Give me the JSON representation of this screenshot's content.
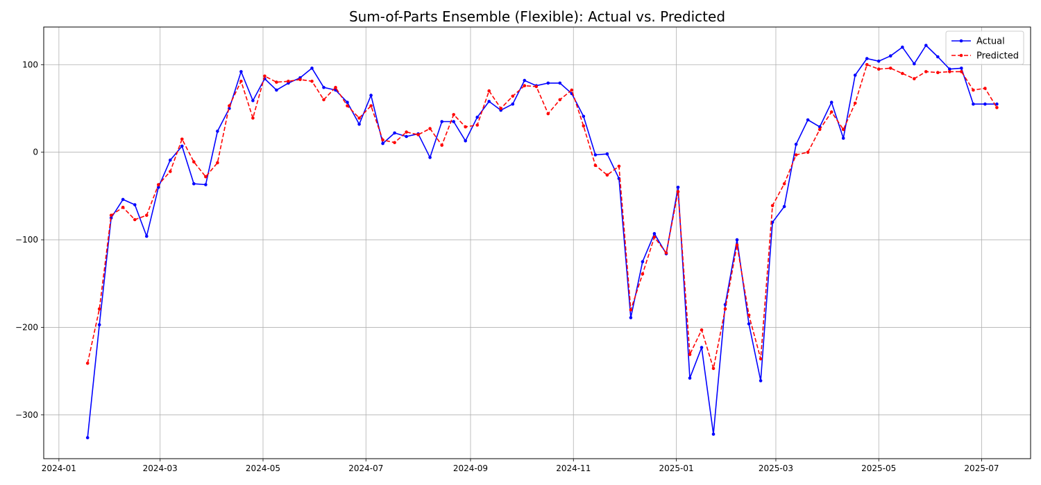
{
  "chart_data": {
    "type": "line",
    "title": "Sum-of-Parts Ensemble (Flexible): Actual vs. Predicted",
    "xlabel": "",
    "ylabel": "",
    "x_range": [
      "2023-12-23",
      "2025-07-30"
    ],
    "xlim": [
      "2023-12-23",
      "2025-07-30"
    ],
    "ylim": [
      -350,
      143
    ],
    "grid": true,
    "legend_position": "top-right",
    "x_ticks": [
      "2024-01-01",
      "2024-03-01",
      "2024-05-01",
      "2024-07-01",
      "2024-09-01",
      "2024-11-01",
      "2025-01-01",
      "2025-03-01",
      "2025-05-01",
      "2025-07-01"
    ],
    "x_tick_labels": [
      "2024-01",
      "2024-03",
      "2024-05",
      "2024-07",
      "2024-09",
      "2024-11",
      "2025-01",
      "2025-03",
      "2025-05",
      "2025-07"
    ],
    "y_ticks": [
      -300,
      -200,
      -100,
      0,
      100
    ],
    "y_tick_labels": [
      "−300",
      "−200",
      "−100",
      "0",
      "100"
    ],
    "x": [
      "2024-01-18",
      "2024-01-25",
      "2024-02-01",
      "2024-02-08",
      "2024-02-15",
      "2024-02-22",
      "2024-02-29",
      "2024-03-07",
      "2024-03-14",
      "2024-03-21",
      "2024-03-28",
      "2024-04-04",
      "2024-04-11",
      "2024-04-18",
      "2024-04-25",
      "2024-05-02",
      "2024-05-09",
      "2024-05-16",
      "2024-05-23",
      "2024-05-30",
      "2024-06-06",
      "2024-06-13",
      "2024-06-20",
      "2024-06-27",
      "2024-07-04",
      "2024-07-11",
      "2024-07-18",
      "2024-07-25",
      "2024-08-01",
      "2024-08-08",
      "2024-08-15",
      "2024-08-22",
      "2024-08-29",
      "2024-09-05",
      "2024-09-12",
      "2024-09-19",
      "2024-09-26",
      "2024-10-03",
      "2024-10-10",
      "2024-10-17",
      "2024-10-24",
      "2024-10-31",
      "2024-11-07",
      "2024-11-14",
      "2024-11-21",
      "2024-11-28",
      "2024-12-05",
      "2024-12-12",
      "2024-12-19",
      "2024-12-26",
      "2025-01-02",
      "2025-01-09",
      "2025-01-16",
      "2025-01-23",
      "2025-01-30",
      "2025-02-06",
      "2025-02-13",
      "2025-02-20",
      "2025-02-27",
      "2025-03-06",
      "2025-03-13",
      "2025-03-20",
      "2025-03-27",
      "2025-04-03",
      "2025-04-10",
      "2025-04-17",
      "2025-04-24",
      "2025-05-01",
      "2025-05-08",
      "2025-05-15",
      "2025-05-22",
      "2025-05-29",
      "2025-06-05",
      "2025-06-12",
      "2025-06-19",
      "2025-06-26",
      "2025-07-03",
      "2025-07-10"
    ],
    "series": [
      {
        "name": "Actual",
        "color": "#0000ff",
        "style": "solid",
        "marker": "circle",
        "values": [
          -326,
          -197,
          -75,
          -54,
          -60,
          -96,
          -40,
          -9,
          7,
          -36,
          -37,
          24,
          50,
          92,
          59,
          84,
          71,
          79,
          85,
          96,
          74,
          71,
          57,
          32,
          65,
          10,
          22,
          18,
          21,
          -6,
          35,
          35,
          13,
          40,
          58,
          48,
          55,
          82,
          76,
          79,
          79,
          67,
          41,
          -3,
          -2,
          -30,
          -189,
          -125,
          -93,
          -116,
          -40,
          -258,
          -223,
          -322,
          -174,
          -100,
          -196,
          -261,
          -80,
          -62,
          9,
          37,
          29,
          57,
          16,
          88,
          107,
          104,
          110,
          120,
          101,
          122,
          109,
          95,
          96,
          55,
          55,
          55
        ]
      },
      {
        "name": "Predicted",
        "color": "#ff0000",
        "style": "dashed",
        "marker": "circle",
        "values": [
          -241,
          -179,
          -72,
          -63,
          -77,
          -72,
          -37,
          -22,
          15,
          -11,
          -28,
          -12,
          53,
          81,
          39,
          87,
          80,
          81,
          83,
          81,
          60,
          74,
          53,
          39,
          53,
          14,
          11,
          23,
          20,
          27,
          8,
          43,
          29,
          31,
          70,
          50,
          64,
          76,
          75,
          44,
          60,
          71,
          30,
          -15,
          -26,
          -16,
          -180,
          -139,
          -97,
          -115,
          -45,
          -231,
          -203,
          -247,
          -179,
          -106,
          -186,
          -236,
          -61,
          -36,
          -3,
          0,
          26,
          46,
          26,
          56,
          100,
          95,
          96,
          90,
          84,
          92,
          91,
          92,
          92,
          71,
          73,
          51
        ]
      }
    ]
  }
}
